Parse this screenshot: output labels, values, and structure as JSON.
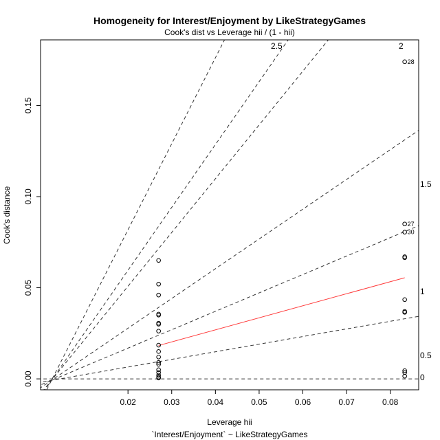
{
  "chart_data": {
    "type": "scatter",
    "title": "Homogeneity for Interest/Enjoyment by LikeStrategyGames",
    "subtitle": "Cook's dist vs Leverage  hii / (1 - hii)",
    "xlabel": "Leverage  hii",
    "xlabel_sub": "`Interest/Enjoyment` ~ LikeStrategyGames",
    "ylabel": "Cook's distance",
    "xlim": [
      0.0,
      0.0865
    ],
    "ylim": [
      -0.006,
      0.186
    ],
    "x_ticks": [
      "0.02",
      "0.03",
      "0.04",
      "0.05",
      "0.06",
      "0.07",
      "0.08"
    ],
    "y_ticks": [
      "0.00",
      "0.05",
      "0.10",
      "0.15"
    ],
    "grid": false,
    "points": [
      {
        "x": 0.027,
        "y": 0.065
      },
      {
        "x": 0.027,
        "y": 0.052
      },
      {
        "x": 0.027,
        "y": 0.046
      },
      {
        "x": 0.027,
        "y": 0.0355
      },
      {
        "x": 0.027,
        "y": 0.035
      },
      {
        "x": 0.027,
        "y": 0.0305
      },
      {
        "x": 0.027,
        "y": 0.03
      },
      {
        "x": 0.027,
        "y": 0.0262
      },
      {
        "x": 0.027,
        "y": 0.0185
      },
      {
        "x": 0.027,
        "y": 0.015
      },
      {
        "x": 0.027,
        "y": 0.012
      },
      {
        "x": 0.027,
        "y": 0.009
      },
      {
        "x": 0.027,
        "y": 0.008
      },
      {
        "x": 0.027,
        "y": 0.005
      },
      {
        "x": 0.027,
        "y": 0.0035
      },
      {
        "x": 0.027,
        "y": 0.002
      },
      {
        "x": 0.027,
        "y": 0.001
      },
      {
        "x": 0.027,
        "y": 0.0005
      },
      {
        "x": 0.0833,
        "y": 0.174,
        "label": "28"
      },
      {
        "x": 0.0833,
        "y": 0.085,
        "label": "27"
      },
      {
        "x": 0.0833,
        "y": 0.0805,
        "label": "30"
      },
      {
        "x": 0.0833,
        "y": 0.067
      },
      {
        "x": 0.0833,
        "y": 0.0665
      },
      {
        "x": 0.0833,
        "y": 0.0435
      },
      {
        "x": 0.0833,
        "y": 0.037
      },
      {
        "x": 0.0833,
        "y": 0.0365
      },
      {
        "x": 0.0833,
        "y": 0.0045
      },
      {
        "x": 0.0833,
        "y": 0.0035
      },
      {
        "x": 0.0833,
        "y": 0.0015
      }
    ],
    "fit_line": {
      "x": [
        0.027,
        0.0833
      ],
      "y": [
        0.0183,
        0.0555
      ],
      "color": "#ff3b3b"
    },
    "contours": [
      "0",
      "0.5",
      "1",
      "1.5",
      "2",
      "2.5"
    ],
    "point_color": "#000000",
    "contour_color": "#333333"
  }
}
